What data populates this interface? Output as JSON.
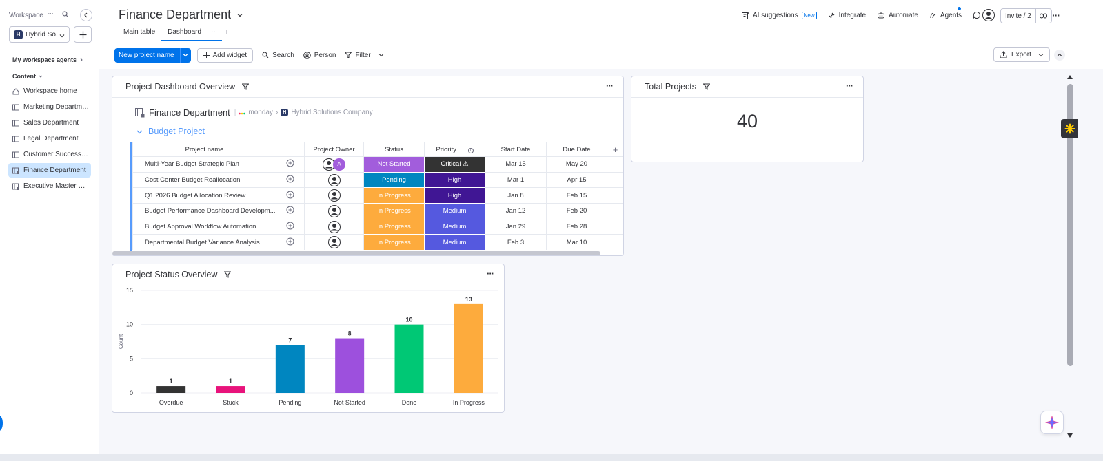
{
  "sidebar": {
    "workspace_label": "Workspace",
    "workspace_badge": "H",
    "workspace_name": "Hybrid So...",
    "agents_label": "My workspace agents",
    "content_label": "Content",
    "items": [
      {
        "label": "Workspace home",
        "icon": "home-icon",
        "active": false
      },
      {
        "label": "Marketing Department",
        "icon": "board-icon",
        "active": false
      },
      {
        "label": "Sales Department",
        "icon": "board-icon",
        "active": false
      },
      {
        "label": "Legal Department",
        "icon": "board-icon",
        "active": false
      },
      {
        "label": "Customer Success De...",
        "icon": "board-icon",
        "active": false
      },
      {
        "label": "Finance Department",
        "icon": "dashboard-icon",
        "active": true
      },
      {
        "label": "Executive Master Dash...",
        "icon": "dashboard-icon",
        "active": false
      }
    ]
  },
  "header": {
    "board_title": "Finance Department",
    "tabs": [
      "Main table",
      "Dashboard"
    ],
    "tab_more": "···",
    "tab_add": "+",
    "actions": {
      "ai_suggestions": "AI suggestions",
      "new_badge": "New",
      "integrate": "Integrate",
      "automate": "Automate",
      "agents": "Agents"
    },
    "invite_label": "Invite / 2"
  },
  "toolbar": {
    "new_project": "New project name",
    "add_widget": "Add widget",
    "search": "Search",
    "person": "Person",
    "filter": "Filter",
    "export": "Export"
  },
  "overview_widget": {
    "title": "Project Dashboard Overview",
    "board_name": "Finance Department",
    "brand": "monday",
    "company_badge": "H",
    "company": "Hybrid Solutions Company",
    "group_name": "Budget Project",
    "columns": [
      "Project name",
      "Project Owner",
      "Status",
      "Priority",
      "Start Date",
      "Due Date"
    ],
    "rows": [
      {
        "name": "Multi-Year Budget Strategic Plan",
        "owner_extra": "A",
        "status": "Not Started",
        "status_color": "#a25ddc",
        "priority": "Critical ⚠",
        "priority_color": "#333333",
        "start": "Mar 15",
        "due": "May 20"
      },
      {
        "name": "Cost Center Budget Reallocation",
        "owner_extra": "",
        "status": "Pending",
        "status_color": "#0086c0",
        "priority": "High",
        "priority_color": "#401694",
        "start": "Mar 1",
        "due": "Apr 15"
      },
      {
        "name": "Q1 2026 Budget Allocation Review",
        "owner_extra": "",
        "status": "In Progress",
        "status_color": "#fdab3d",
        "priority": "High",
        "priority_color": "#401694",
        "start": "Jan 8",
        "due": "Feb 15"
      },
      {
        "name": "Budget Performance Dashboard Developm...",
        "owner_extra": "",
        "status": "In Progress",
        "status_color": "#fdab3d",
        "priority": "Medium",
        "priority_color": "#5559df",
        "start": "Jan 12",
        "due": "Feb 20"
      },
      {
        "name": "Budget Approval Workflow Automation",
        "owner_extra": "",
        "status": "In Progress",
        "status_color": "#fdab3d",
        "priority": "Medium",
        "priority_color": "#5559df",
        "start": "Jan 29",
        "due": "Feb 28"
      },
      {
        "name": "Departmental Budget Variance Analysis",
        "owner_extra": "",
        "status": "In Progress",
        "status_color": "#fdab3d",
        "priority": "Medium",
        "priority_color": "#5559df",
        "start": "Feb 3",
        "due": "Mar 10"
      }
    ]
  },
  "total_widget": {
    "title": "Total Projects",
    "value": "40"
  },
  "status_widget": {
    "title": "Project Status Overview"
  },
  "chart_data": {
    "type": "bar",
    "title": "",
    "xlabel": "",
    "ylabel": "Count",
    "ylim": [
      0,
      15
    ],
    "yticks": [
      0,
      5,
      10,
      15
    ],
    "categories": [
      "Overdue",
      "Stuck",
      "Pending",
      "Not Started",
      "Done",
      "In Progress"
    ],
    "values": [
      1,
      1,
      7,
      8,
      10,
      13
    ],
    "colors": [
      "#333333",
      "#e8137b",
      "#0086c0",
      "#9d50dd",
      "#00c875",
      "#fdab3d"
    ],
    "grid": true,
    "legend": "none"
  }
}
